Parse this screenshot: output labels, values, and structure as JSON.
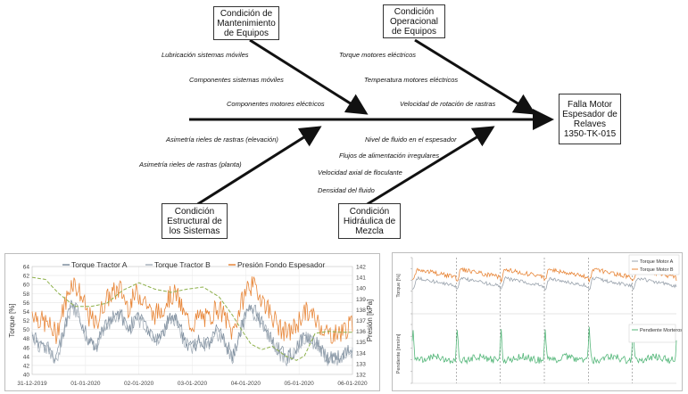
{
  "fishbone": {
    "head": "Falla Motor\nEspesador de\nRelaves\n1350-TK-015",
    "categories": {
      "mantenimiento": "Condición de\nMantenimiento\nde Equipos",
      "operacional": "Condición\nOperacional\nde Equipos",
      "estructural": "Condición\nEstructural de\nlos Sistemas",
      "hidraulica": "Condición\nHidráulica de\nMezcla"
    },
    "causes": {
      "mantenimiento": [
        "Lubricación sistemas móviles",
        "Componentes sistemas móviles",
        "Componentes motores eléctricos"
      ],
      "operacional": [
        "Torque motores eléctricos",
        "Temperatura motores eléctricos",
        "Velocidad de rotación de rastras"
      ],
      "estructural": [
        "Asimetría rieles de rastras (elevación)",
        "Asimetría rieles de rastras (planta)"
      ],
      "hidraulica": [
        "Nivel de fluido en el espesador",
        "Flujos de alimentación irregulares",
        "Velocidad axial de floculante",
        "Densidad del fluido"
      ]
    }
  },
  "chart_data": [
    {
      "type": "line",
      "title": "",
      "legend": [
        "Torque Tractor A",
        "Torque Tractor B",
        "Presión Fondo Espesador"
      ],
      "legend_position": "top",
      "colors": {
        "a": "#7f8f9f",
        "b": "#a9b3bd",
        "p": "#e8873a",
        "pressure": "#8db04a"
      },
      "ylabel": "Torque [%]",
      "y2label": "Presión [kPa]",
      "ylim": [
        40,
        64
      ],
      "y2lim": [
        132,
        142
      ],
      "yticks": [
        "40",
        "42",
        "44",
        "46",
        "48",
        "50",
        "52",
        "54",
        "56",
        "58",
        "60",
        "62",
        "64"
      ],
      "y2ticks": [
        "132",
        "133",
        "134",
        "135",
        "136",
        "137",
        "138",
        "139",
        "140",
        "141",
        "142"
      ],
      "xticks": [
        "31-12-2019",
        "01-01-2020",
        "02-01-2020",
        "03-01-2020",
        "04-01-2020",
        "05-01-2020",
        "06-01-2020"
      ],
      "grid": true,
      "pressure_series": [
        [
          0,
          141.0
        ],
        [
          0.25,
          140.8
        ],
        [
          0.5,
          139.5
        ],
        [
          0.8,
          138.3
        ],
        [
          1.1,
          138.3
        ],
        [
          1.4,
          138.6
        ],
        [
          1.7,
          139.8
        ],
        [
          2.0,
          140.5
        ],
        [
          2.3,
          139.9
        ],
        [
          2.6,
          139.6
        ],
        [
          2.9,
          139.9
        ],
        [
          3.2,
          140.1
        ],
        [
          3.5,
          139.2
        ],
        [
          3.75,
          137.5
        ],
        [
          3.9,
          136.3
        ],
        [
          4.1,
          134.8
        ],
        [
          4.3,
          134.3
        ],
        [
          4.5,
          134.6
        ],
        [
          4.75,
          133.7
        ],
        [
          4.95,
          133.3
        ],
        [
          5.1,
          133.7
        ],
        [
          5.3,
          135.8
        ],
        [
          5.55,
          136.0
        ],
        [
          5.8,
          135.9
        ],
        [
          6.0,
          135.9
        ]
      ],
      "torque_envelope": [
        [
          0,
          51
        ],
        [
          0.15,
          49
        ],
        [
          0.3,
          48
        ],
        [
          0.45,
          46
        ],
        [
          0.6,
          52
        ],
        [
          0.75,
          58
        ],
        [
          0.9,
          55
        ],
        [
          1.05,
          50
        ],
        [
          1.2,
          48
        ],
        [
          1.35,
          53
        ],
        [
          1.5,
          55
        ],
        [
          1.65,
          56
        ],
        [
          1.8,
          52
        ],
        [
          1.95,
          55
        ],
        [
          2.1,
          54
        ],
        [
          2.25,
          50
        ],
        [
          2.4,
          51
        ],
        [
          2.55,
          54
        ],
        [
          2.7,
          55
        ],
        [
          2.85,
          50
        ],
        [
          3.0,
          48
        ],
        [
          3.15,
          50
        ],
        [
          3.3,
          49
        ],
        [
          3.45,
          52
        ],
        [
          3.6,
          50
        ],
        [
          3.75,
          46
        ],
        [
          3.9,
          52
        ],
        [
          4.05,
          57
        ],
        [
          4.2,
          56
        ],
        [
          4.35,
          53
        ],
        [
          4.5,
          50
        ],
        [
          4.65,
          47
        ],
        [
          4.8,
          46
        ],
        [
          4.95,
          48
        ],
        [
          5.1,
          51
        ],
        [
          5.25,
          50
        ],
        [
          5.4,
          48
        ],
        [
          5.55,
          46
        ],
        [
          5.7,
          46
        ],
        [
          5.85,
          47
        ],
        [
          6.0,
          48
        ]
      ]
    },
    {
      "type": "line",
      "legend": [
        "Torque Motor A",
        "Torque Motor B",
        "Pendiente Morteros"
      ],
      "colors": {
        "a": "#9aa3ad",
        "b": "#e8873a",
        "c": "#55b77a"
      },
      "ylabel_top": "Torque [%]",
      "ylabel_bottom": "Pendiente [mm/m]",
      "cycles": 6,
      "grid": false
    }
  ]
}
